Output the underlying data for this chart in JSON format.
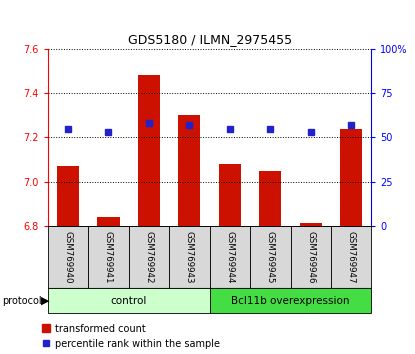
{
  "title": "GDS5180 / ILMN_2975455",
  "samples": [
    "GSM769940",
    "GSM769941",
    "GSM769942",
    "GSM769943",
    "GSM769944",
    "GSM769945",
    "GSM769946",
    "GSM769947"
  ],
  "transformed_counts": [
    7.07,
    6.84,
    7.48,
    7.3,
    7.08,
    7.05,
    6.815,
    7.24
  ],
  "percentile_ranks": [
    55,
    53,
    58,
    57,
    55,
    55,
    53,
    57
  ],
  "ylim_left": [
    6.8,
    7.6
  ],
  "ylim_right": [
    0,
    100
  ],
  "yticks_left": [
    6.8,
    7.0,
    7.2,
    7.4,
    7.6
  ],
  "yticks_right": [
    0,
    25,
    50,
    75,
    100
  ],
  "bar_color": "#cc1100",
  "dot_color": "#2222cc",
  "bar_bottom": 6.8,
  "control_color": "#ccffcc",
  "bcl_color": "#44dd44",
  "protocol_label": "protocol",
  "legend_bar_label": "transformed count",
  "legend_dot_label": "percentile rank within the sample",
  "background_color": "#ffffff",
  "title_fontsize": 9,
  "tick_label_fontsize": 7,
  "label_fontsize": 6.5,
  "legend_fontsize": 7
}
